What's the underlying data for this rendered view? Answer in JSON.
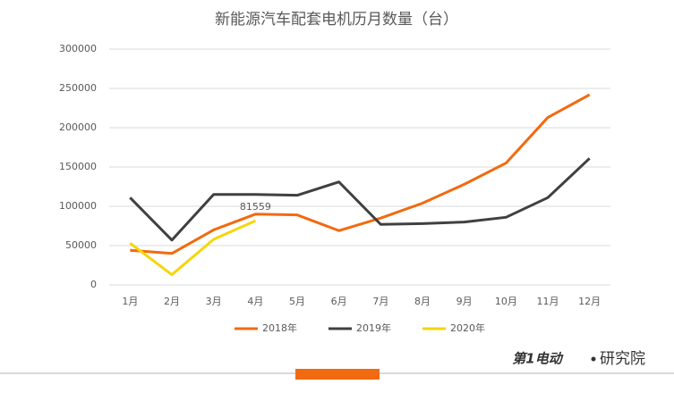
{
  "chart_data": {
    "type": "line",
    "title": "新能源汽车配套电机历月数量（台）",
    "categories": [
      "1月",
      "2月",
      "3月",
      "4月",
      "5月",
      "6月",
      "7月",
      "8月",
      "9月",
      "10月",
      "11月",
      "12月"
    ],
    "series": [
      {
        "name": "2018年",
        "color": "#f26a10",
        "values": [
          44000,
          40000,
          70000,
          90000,
          89000,
          69000,
          85000,
          104000,
          128000,
          155000,
          213000,
          242000
        ]
      },
      {
        "name": "2019年",
        "color": "#404040",
        "values": [
          111000,
          57000,
          115000,
          115000,
          114000,
          131000,
          77000,
          78000,
          80000,
          86000,
          111000,
          161000
        ]
      },
      {
        "name": "2020年",
        "color": "#f5d60a",
        "values": [
          53000,
          13000,
          58000,
          81559,
          null,
          null,
          null,
          null,
          null,
          null,
          null,
          null
        ],
        "data_labels": "last"
      }
    ],
    "ylim": [
      0,
      300000
    ],
    "yticks": [
      0,
      50000,
      100000,
      150000,
      200000,
      250000,
      300000
    ],
    "grid": true,
    "legend": "bottom",
    "footer": {
      "logo": "第1电动",
      "brand": "研究院"
    }
  }
}
